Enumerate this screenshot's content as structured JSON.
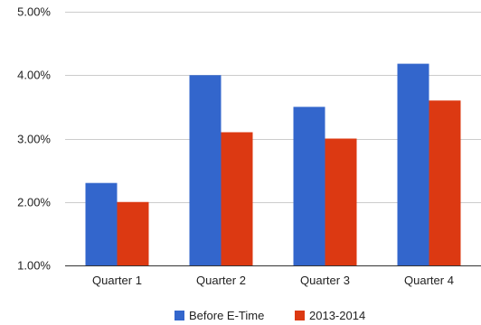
{
  "chart_data": {
    "type": "bar",
    "categories": [
      "Quarter 1",
      "Quarter 2",
      "Quarter 3",
      "Quarter 4"
    ],
    "series": [
      {
        "name": "Before E-Time",
        "color": "#3366cc",
        "values": [
          2.3,
          4.0,
          3.5,
          4.18
        ]
      },
      {
        "name": "2013-2014",
        "color": "#dc3912",
        "values": [
          2.0,
          3.1,
          3.0,
          3.6
        ]
      }
    ],
    "yticks": [
      1,
      2,
      3,
      4,
      5
    ],
    "ytick_labels": [
      "1.00%",
      "2.00%",
      "3.00%",
      "4.00%",
      "5.00%"
    ],
    "ylim": [
      1,
      5
    ],
    "grid": true,
    "gridline_color": "#cccccc",
    "legend_position": "bottom"
  }
}
